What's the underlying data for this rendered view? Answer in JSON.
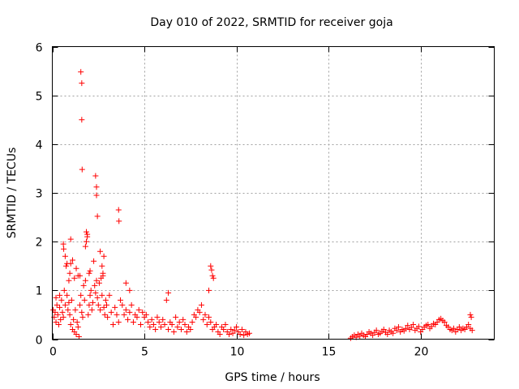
{
  "chart_data": {
    "type": "scatter",
    "title": "Day 010 of 2022, SRMTID for receiver goja",
    "xlabel": "GPS time / hours",
    "ylabel": "SRMTID / TECUs",
    "xlim": [
      0,
      24
    ],
    "ylim": [
      0,
      6
    ],
    "x_ticks": [
      0,
      5,
      10,
      15,
      20
    ],
    "y_ticks": [
      0,
      1,
      2,
      3,
      4,
      5,
      6
    ],
    "x_tick_labels": [
      "0",
      "5",
      "10",
      "15",
      "20"
    ],
    "y_tick_labels": [
      "0",
      "1",
      "2",
      "3",
      "4",
      "5",
      "6"
    ],
    "grid": true,
    "marker": "+",
    "color": "#ff0000",
    "series": [
      {
        "name": "SRMTID",
        "x": [
          0.05,
          0.1,
          0.15,
          0.2,
          0.25,
          0.3,
          0.35,
          0.4,
          0.45,
          0.5,
          0.55,
          0.6,
          0.65,
          0.7,
          0.75,
          0.8,
          0.85,
          0.9,
          0.95,
          1.0,
          1.05,
          1.1,
          1.15,
          1.2,
          1.25,
          1.3,
          1.35,
          1.4,
          1.45,
          1.5,
          1.55,
          1.6,
          1.65,
          1.7,
          1.75,
          1.8,
          1.85,
          1.9,
          1.95,
          2.0,
          2.05,
          2.1,
          2.15,
          2.2,
          2.25,
          2.3,
          2.35,
          2.4,
          2.45,
          2.5,
          2.55,
          2.6,
          2.65,
          2.7,
          2.75,
          2.8,
          2.85,
          2.9,
          2.95,
          3.0,
          3.1,
          3.2,
          3.3,
          3.4,
          3.5,
          3.6,
          3.7,
          3.8,
          3.9,
          4.0,
          4.1,
          4.2,
          4.3,
          4.4,
          4.5,
          4.6,
          4.7,
          4.8,
          4.9,
          5.0,
          5.1,
          5.2,
          5.3,
          5.4,
          5.5,
          5.6,
          5.7,
          5.8,
          5.9,
          6.0,
          6.1,
          6.2,
          6.3,
          6.4,
          6.5,
          6.6,
          6.7,
          6.8,
          6.9,
          7.0,
          7.1,
          7.2,
          7.3,
          7.4,
          7.5,
          7.6,
          7.7,
          7.8,
          7.9,
          8.0,
          8.1,
          8.2,
          8.3,
          8.4,
          8.5,
          8.6,
          8.7,
          8.8,
          8.9,
          9.0,
          9.1,
          9.2,
          9.3,
          9.4,
          9.5,
          9.6,
          9.7,
          9.8,
          9.9,
          10.0,
          10.1,
          10.2,
          10.3,
          10.4,
          10.5,
          10.6,
          10.7,
          1.55,
          1.6,
          1.6,
          1.62,
          2.35,
          2.4,
          2.4,
          2.45,
          3.6,
          3.62,
          0.6,
          0.62,
          0.7,
          0.8,
          0.95,
          1.0,
          1.1,
          1.3,
          1.8,
          1.85,
          1.9,
          2.0,
          2.05,
          2.6,
          2.7,
          2.75,
          2.8,
          1.0,
          1.2,
          1.4,
          8.6,
          8.65,
          8.7,
          8.75,
          8.5,
          4.0,
          4.2,
          6.3,
          0.2,
          0.4,
          0.9,
          1.5,
          16.2,
          16.3,
          16.4,
          16.5,
          16.6,
          16.7,
          16.8,
          16.9,
          17.0,
          17.1,
          17.2,
          17.3,
          17.4,
          17.5,
          17.6,
          17.7,
          17.8,
          17.9,
          18.0,
          18.1,
          18.2,
          18.3,
          18.4,
          18.5,
          18.6,
          18.7,
          18.8,
          18.9,
          19.0,
          19.1,
          19.2,
          19.3,
          19.4,
          19.5,
          19.6,
          19.7,
          19.8,
          19.9,
          20.0,
          20.1,
          20.2,
          20.3,
          20.4,
          20.5,
          20.6,
          20.7,
          20.8,
          20.9,
          21.0,
          21.1,
          21.2,
          21.3,
          21.4,
          21.5,
          21.6,
          21.7,
          21.8,
          21.9,
          22.0,
          22.1,
          22.2,
          22.3,
          22.4,
          22.5,
          22.6,
          22.7,
          22.8,
          22.7,
          22.75
        ],
        "y": [
          0.6,
          0.45,
          0.55,
          0.35,
          0.7,
          0.5,
          0.3,
          0.65,
          0.4,
          0.8,
          0.55,
          0.45,
          1.0,
          0.7,
          1.5,
          0.9,
          0.6,
          1.2,
          0.5,
          0.3,
          0.8,
          0.2,
          0.4,
          0.15,
          0.6,
          0.1,
          0.35,
          0.25,
          0.05,
          1.3,
          0.9,
          0.55,
          0.45,
          1.1,
          0.8,
          1.2,
          2.0,
          2.1,
          0.5,
          0.7,
          0.9,
          1.0,
          0.6,
          0.75,
          1.6,
          1.1,
          0.95,
          1.2,
          0.85,
          0.7,
          1.15,
          0.6,
          1.25,
          0.9,
          1.3,
          0.65,
          0.5,
          0.8,
          0.7,
          0.45,
          0.9,
          0.55,
          0.3,
          0.65,
          0.5,
          0.35,
          0.8,
          0.7,
          0.5,
          0.6,
          0.4,
          0.55,
          0.7,
          0.35,
          0.5,
          0.45,
          0.6,
          0.3,
          0.55,
          0.45,
          0.5,
          0.35,
          0.25,
          0.4,
          0.3,
          0.2,
          0.45,
          0.35,
          0.25,
          0.4,
          0.3,
          0.8,
          0.2,
          0.35,
          0.3,
          0.15,
          0.45,
          0.25,
          0.35,
          0.2,
          0.4,
          0.3,
          0.15,
          0.25,
          0.2,
          0.35,
          0.5,
          0.45,
          0.6,
          0.55,
          0.7,
          0.4,
          0.5,
          0.3,
          0.45,
          0.35,
          0.2,
          0.25,
          0.3,
          0.15,
          0.1,
          0.25,
          0.2,
          0.3,
          0.15,
          0.1,
          0.2,
          0.12,
          0.18,
          0.25,
          0.15,
          0.1,
          0.2,
          0.08,
          0.15,
          0.1,
          0.12,
          5.48,
          5.25,
          4.5,
          3.48,
          3.35,
          3.12,
          2.95,
          2.52,
          2.65,
          2.42,
          1.95,
          1.85,
          1.7,
          1.55,
          1.35,
          1.55,
          1.62,
          1.45,
          1.9,
          2.2,
          2.15,
          1.35,
          1.4,
          1.8,
          1.5,
          1.35,
          1.7,
          2.05,
          1.25,
          1.3,
          1.5,
          1.42,
          1.3,
          1.25,
          1.0,
          1.15,
          1.0,
          0.95,
          0.85,
          0.9,
          0.75,
          0.7,
          0.02,
          0.05,
          0.08,
          0.04,
          0.1,
          0.06,
          0.12,
          0.08,
          0.05,
          0.1,
          0.15,
          0.12,
          0.08,
          0.14,
          0.18,
          0.1,
          0.12,
          0.16,
          0.2,
          0.14,
          0.1,
          0.18,
          0.15,
          0.12,
          0.22,
          0.18,
          0.25,
          0.15,
          0.2,
          0.17,
          0.22,
          0.28,
          0.2,
          0.24,
          0.3,
          0.18,
          0.22,
          0.26,
          0.15,
          0.2,
          0.25,
          0.28,
          0.3,
          0.22,
          0.26,
          0.32,
          0.3,
          0.35,
          0.4,
          0.42,
          0.38,
          0.35,
          0.28,
          0.25,
          0.2,
          0.18,
          0.22,
          0.15,
          0.2,
          0.25,
          0.18,
          0.22,
          0.2,
          0.25,
          0.3,
          0.22,
          0.18,
          0.5,
          0.45
        ]
      }
    ]
  }
}
